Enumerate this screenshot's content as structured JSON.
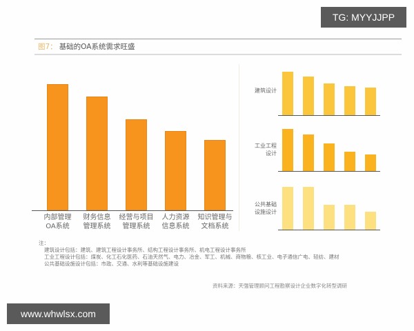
{
  "figure": {
    "number_label": "图7：",
    "title": "基础的OA系统需求旺盛"
  },
  "chart_data": [
    {
      "type": "bar",
      "title": "基础的OA系统需求旺盛",
      "categories": [
        "内部管理OA系统",
        "财务信息管理系统",
        "经营与项目管理系统",
        "人力资源信息系统",
        "知识管理与文档系统"
      ],
      "category_lines": [
        [
          "内部管理",
          "OA系统"
        ],
        [
          "财务信息",
          "管理系统"
        ],
        [
          "经营与项目",
          "管理系统"
        ],
        [
          "人力资源",
          "信息系统"
        ],
        [
          "知识管理与",
          "文档系统"
        ]
      ],
      "values": [
        100,
        90,
        72,
        63,
        56
      ],
      "value_unit": "relative height (no axis shown)",
      "color": "#f7941d",
      "xlabel": "",
      "ylabel": "",
      "grid": false
    },
    {
      "type": "bar",
      "panel": "建筑设计",
      "label_lines": [
        "建筑设计"
      ],
      "categories": [
        "内部管理OA系统",
        "财务信息管理系统",
        "经营与项目管理系统",
        "人力资源信息系统",
        "知识管理与文档系统"
      ],
      "values": [
        100,
        89,
        73,
        67,
        63
      ],
      "color": "#fcc63c"
    },
    {
      "type": "bar",
      "panel": "工业工程设计",
      "label_lines": [
        "工业工程",
        "设计"
      ],
      "categories": [
        "内部管理OA系统",
        "财务信息管理系统",
        "经营与项目管理系统",
        "人力资源信息系统",
        "知识管理与文档系统"
      ],
      "values": [
        100,
        87,
        66,
        46,
        39
      ],
      "color": "#fbb21f"
    },
    {
      "type": "bar",
      "panel": "公共基础设施设计",
      "label_lines": [
        "公共基础",
        "设施设计"
      ],
      "categories": [
        "内部管理OA系统",
        "财务信息管理系统",
        "经营与项目管理系统",
        "人力资源信息系统",
        "知识管理与文档系统"
      ],
      "values": [
        100,
        100,
        58,
        58,
        42
      ],
      "color": "#fde07f"
    }
  ],
  "notes": {
    "head": "注：",
    "lines": [
      "建筑设计包括：建筑、建筑工程设计事务所、结构工程设计事务所、机电工程设计事务所",
      "工业工程设计包括：煤炭、化工石化医药、石油天然气、电力、冶金、军工、机械、商物粮、核工业、电子通信广电、轻纺、建材",
      "公共基础设施设计包括：市政、交通、水利等基础设施建设"
    ]
  },
  "source": "资料来源：天强管理顾问工程勘察设计企业数字化转型调研",
  "watermarks": {
    "top_right": "TG: MYYJJPP",
    "bottom_left": "www.whwlsx.com"
  }
}
